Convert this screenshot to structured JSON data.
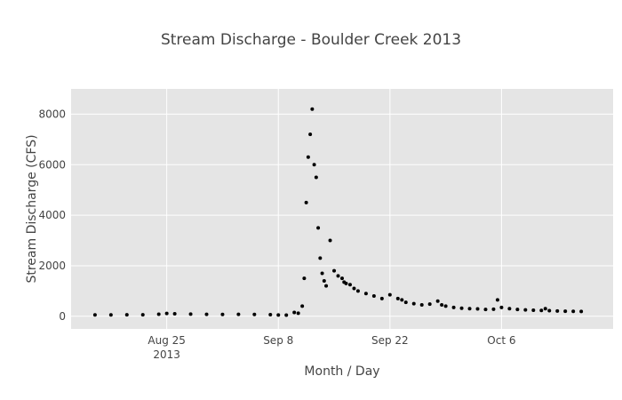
{
  "chart_data": {
    "type": "scatter",
    "title": "Stream Discharge - Boulder Creek 2013",
    "xlabel": "Month / Day",
    "ylabel": "Stream Discharge (CFS)",
    "xlim": [
      "2013-08-13",
      "2013-10-20"
    ],
    "ylim": [
      -500,
      9000
    ],
    "x_ticks": [
      {
        "date": "2013-08-25",
        "label": "Aug 25",
        "sublabel": "2013"
      },
      {
        "date": "2013-09-08",
        "label": "Sep 8",
        "sublabel": ""
      },
      {
        "date": "2013-09-22",
        "label": "Sep 22",
        "sublabel": ""
      },
      {
        "date": "2013-10-06",
        "label": "Oct 6",
        "sublabel": ""
      }
    ],
    "y_ticks": [
      0,
      2000,
      4000,
      6000,
      8000
    ],
    "y_tick_labels": [
      "0",
      "2000",
      "4000",
      "6000",
      "8000"
    ],
    "grid": true,
    "colors": {
      "background": "#e5e5e5",
      "grid": "#ffffff",
      "marker": "#000000"
    },
    "series": [
      {
        "x": [
          "2013-08-16",
          "2013-08-18",
          "2013-08-20",
          "2013-08-22",
          "2013-08-24",
          "2013-08-25",
          "2013-08-26",
          "2013-08-28",
          "2013-08-30",
          "2013-09-01",
          "2013-09-03",
          "2013-09-05",
          "2013-09-07",
          "2013-09-08",
          "2013-09-09",
          "2013-09-10",
          "2013-09-10T12",
          "2013-09-11",
          "2013-09-11T06",
          "2013-09-11T12",
          "2013-09-11T18",
          "2013-09-12",
          "2013-09-12T06",
          "2013-09-12T12",
          "2013-09-12T18",
          "2013-09-13",
          "2013-09-13T06",
          "2013-09-13T12",
          "2013-09-13T18",
          "2013-09-14",
          "2013-09-14T12",
          "2013-09-15",
          "2013-09-15T12",
          "2013-09-16",
          "2013-09-16T06",
          "2013-09-16T12",
          "2013-09-17",
          "2013-09-17T12",
          "2013-09-18",
          "2013-09-19",
          "2013-09-20",
          "2013-09-21",
          "2013-09-22",
          "2013-09-23",
          "2013-09-23T12",
          "2013-09-24",
          "2013-09-25",
          "2013-09-26",
          "2013-09-27",
          "2013-09-28",
          "2013-09-28T12",
          "2013-09-29",
          "2013-09-30",
          "2013-10-01",
          "2013-10-02",
          "2013-10-03",
          "2013-10-04",
          "2013-10-05",
          "2013-10-05T12",
          "2013-10-06",
          "2013-10-07",
          "2013-10-08",
          "2013-10-09",
          "2013-10-10",
          "2013-10-11",
          "2013-10-11T12",
          "2013-10-12",
          "2013-10-13",
          "2013-10-14",
          "2013-10-15",
          "2013-10-16"
        ],
        "y": [
          55,
          55,
          60,
          60,
          80,
          110,
          100,
          85,
          75,
          70,
          75,
          70,
          65,
          50,
          45,
          150,
          120,
          400,
          1500,
          4500,
          6300,
          7200,
          8200,
          6000,
          5500,
          3500,
          2300,
          1700,
          1400,
          1200,
          3000,
          1800,
          1600,
          1500,
          1350,
          1300,
          1250,
          1100,
          1000,
          900,
          800,
          700,
          850,
          700,
          650,
          550,
          500,
          450,
          480,
          600,
          450,
          400,
          350,
          320,
          300,
          290,
          270,
          280,
          650,
          350,
          300,
          270,
          250,
          240,
          230,
          300,
          220,
          210,
          200,
          195,
          190
        ]
      }
    ]
  }
}
